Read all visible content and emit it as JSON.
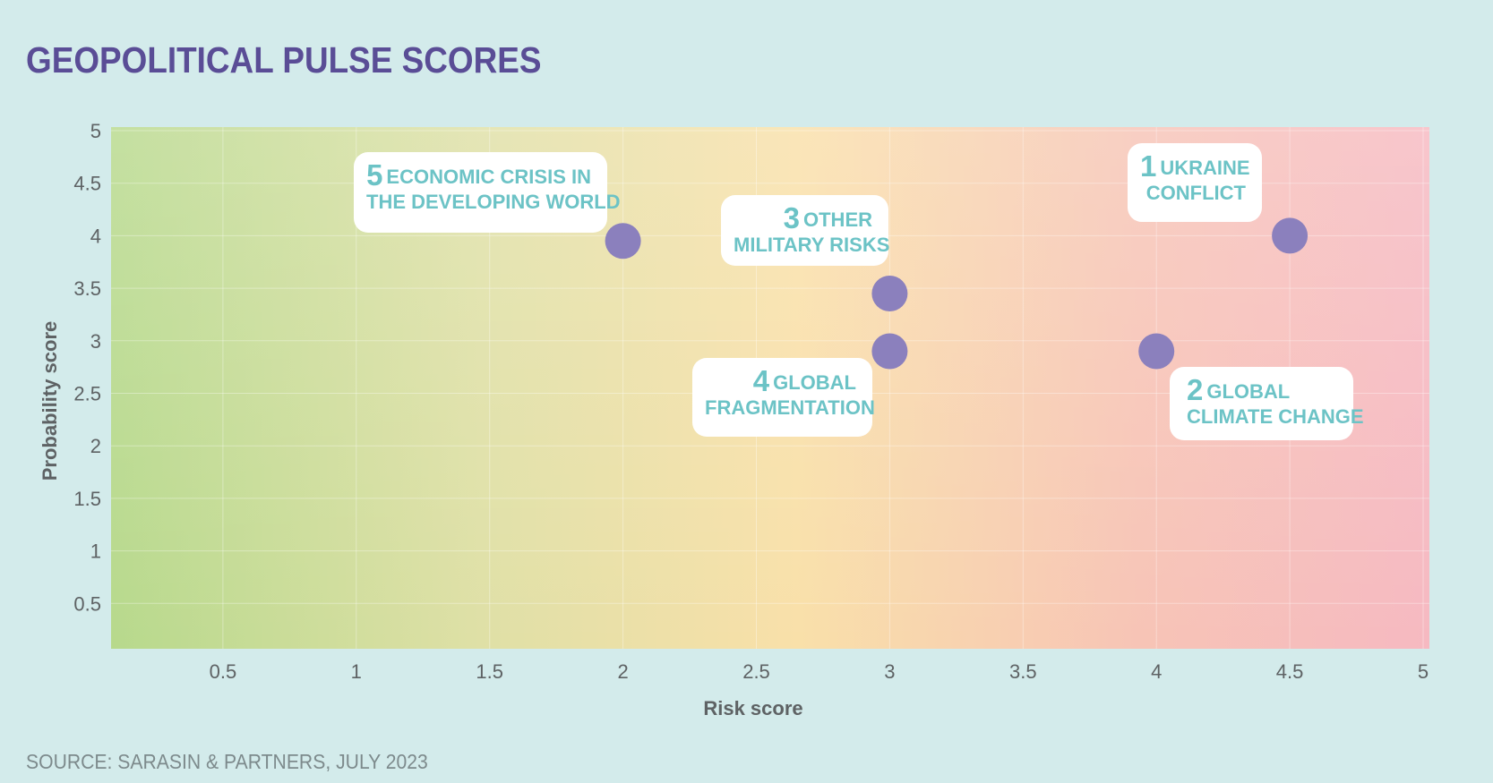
{
  "title": "GEOPOLITICAL PULSE SCORES",
  "source": "SOURCE: SARASIN & PARTNERS, JULY 2023",
  "colors": {
    "title": "#5a4d96",
    "dot": "#8b80bd",
    "callout_text": "#6cc3c6",
    "background": "#d3ebeb",
    "gradient_left": "#b7d98c",
    "gradient_mid": "#f9e0a9",
    "gradient_right": "#f6b9c1"
  },
  "chart_data": {
    "type": "scatter",
    "title": "GEOPOLITICAL PULSE SCORES",
    "xlabel": "Risk score",
    "ylabel": "Probability score",
    "xlim": [
      0,
      5
    ],
    "ylim": [
      0,
      5
    ],
    "x_ticks": [
      "0.5",
      "1",
      "1.5",
      "2",
      "2.5",
      "3",
      "3.5",
      "4",
      "4.5",
      "5"
    ],
    "y_ticks": [
      "0.5",
      "1",
      "1.5",
      "2",
      "2.5",
      "3",
      "3.5",
      "4",
      "4.5",
      "5"
    ],
    "grid": true,
    "points": [
      {
        "rank": "1",
        "label": [
          "UKRAINE",
          "CONFLICT"
        ],
        "x": 4.5,
        "y": 4.0
      },
      {
        "rank": "2",
        "label": [
          "GLOBAL",
          "CLIMATE CHANGE"
        ],
        "x": 4.0,
        "y": 2.9
      },
      {
        "rank": "3",
        "label": [
          "OTHER",
          "MILITARY RISKS"
        ],
        "x": 3.0,
        "y": 3.45
      },
      {
        "rank": "4",
        "label": [
          "GLOBAL",
          "FRAGMENTATION"
        ],
        "x": 3.0,
        "y": 2.9
      },
      {
        "rank": "5",
        "label": [
          "ECONOMIC CRISIS IN",
          "THE DEVELOPING WORLD"
        ],
        "x": 2.0,
        "y": 3.95
      }
    ]
  }
}
